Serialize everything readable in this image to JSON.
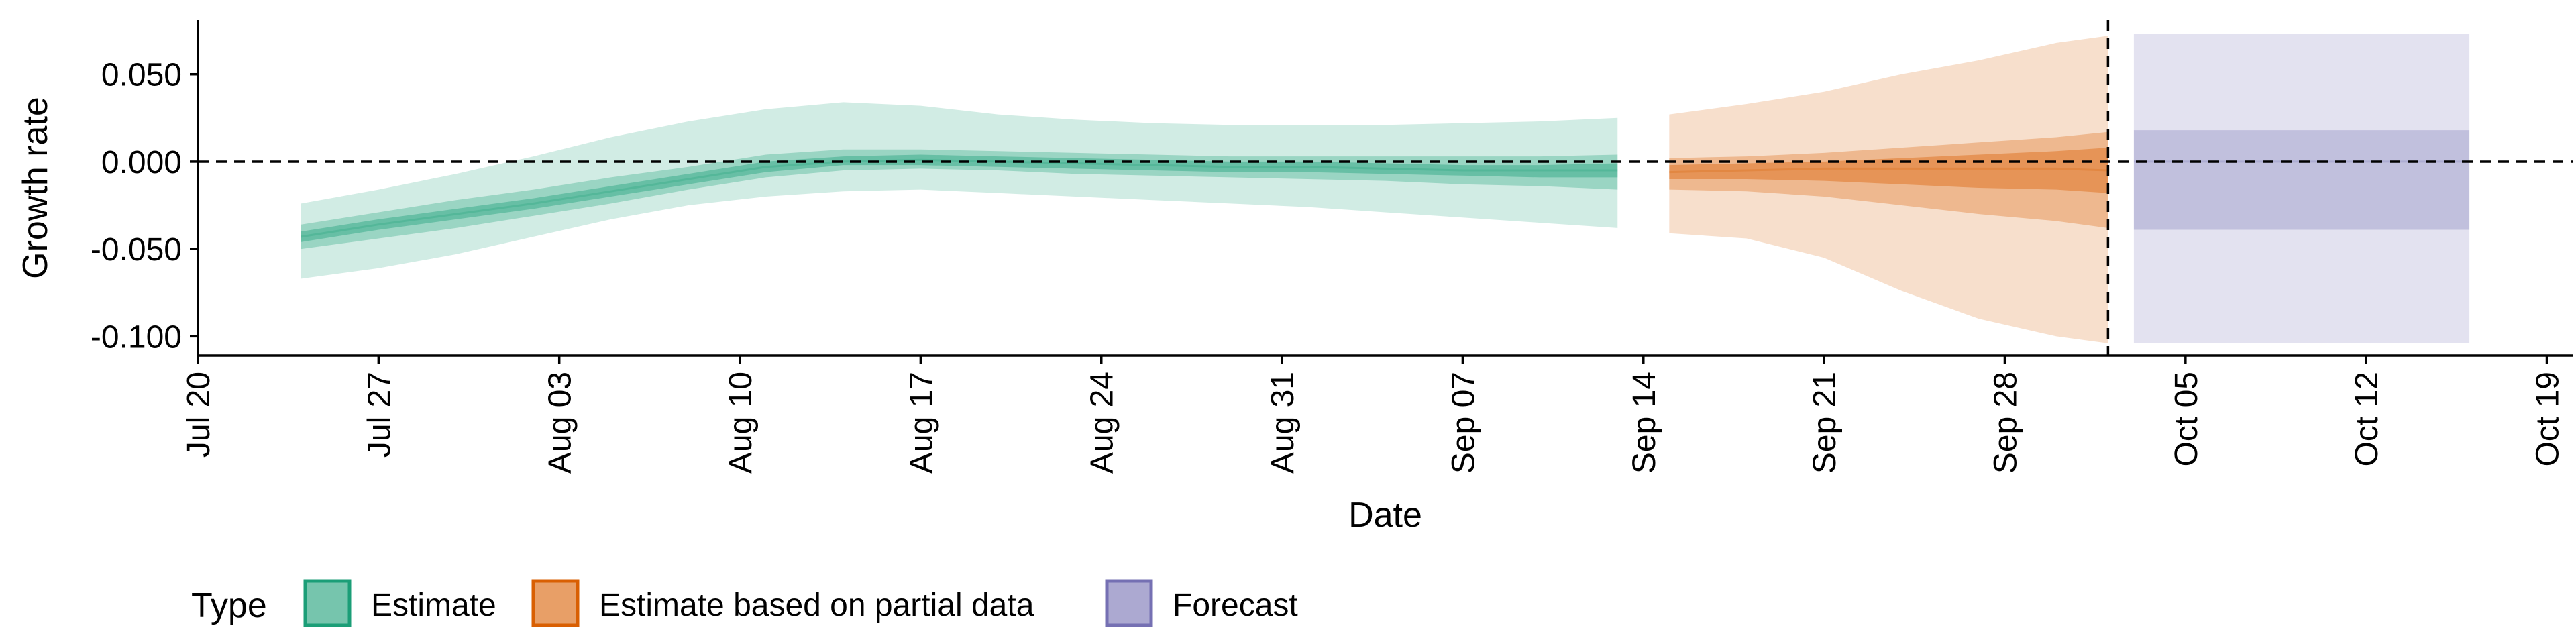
{
  "chart_data": {
    "type": "area",
    "xlabel": "Date",
    "ylabel": "Growth rate",
    "x_ticks": [
      "2020-07-20",
      "2020-07-27",
      "2020-08-03",
      "2020-08-10",
      "2020-08-17",
      "2020-08-24",
      "2020-08-31",
      "2020-09-07",
      "2020-09-14",
      "2020-09-21",
      "2020-09-28",
      "2020-10-05",
      "2020-10-12",
      "2020-10-19"
    ],
    "x_tick_labels": [
      "Jul 20",
      "Jul 27",
      "Aug 03",
      "Aug 10",
      "Aug 17",
      "Aug 24",
      "Aug 31",
      "Sep 07",
      "Sep 14",
      "Sep 21",
      "Sep 28",
      "Oct 05",
      "Oct 12",
      "Oct 19"
    ],
    "y_ticks": [
      0.05,
      0.0,
      -0.05,
      -0.1
    ],
    "y_tick_labels": [
      "0.050",
      "0.000",
      "-0.050",
      "-0.100"
    ],
    "xlim": [
      "2020-07-20",
      "2020-10-20"
    ],
    "ylim": [
      -0.111,
      0.081
    ],
    "hline": 0.0,
    "vline": "2020-10-02",
    "legend": {
      "title": "Type",
      "position": "bottom",
      "entries": [
        {
          "label": "Estimate",
          "color": "#1b9e77"
        },
        {
          "label": "Estimate based on partial data",
          "color": "#d95f02"
        },
        {
          "label": "Forecast",
          "color": "#7570b3"
        }
      ]
    },
    "series": [
      {
        "name": "Estimate",
        "color": "#1b9e77",
        "x": [
          "2020-07-24",
          "2020-07-27",
          "2020-07-30",
          "2020-08-02",
          "2020-08-05",
          "2020-08-08",
          "2020-08-11",
          "2020-08-14",
          "2020-08-17",
          "2020-08-20",
          "2020-08-23",
          "2020-08-26",
          "2020-08-29",
          "2020-09-01",
          "2020-09-04",
          "2020-09-07",
          "2020-09-10",
          "2020-09-13"
        ],
        "median": [
          -0.043,
          -0.036,
          -0.03,
          -0.024,
          -0.017,
          -0.01,
          -0.003,
          0.0,
          0.001,
          0.0,
          -0.001,
          -0.002,
          -0.003,
          -0.003,
          -0.004,
          -0.005,
          -0.005,
          -0.005
        ],
        "lower_90": [
          -0.067,
          -0.061,
          -0.053,
          -0.043,
          -0.033,
          -0.025,
          -0.02,
          -0.017,
          -0.016,
          -0.018,
          -0.02,
          -0.022,
          -0.024,
          -0.026,
          -0.029,
          -0.032,
          -0.035,
          -0.038
        ],
        "upper_90": [
          -0.024,
          -0.016,
          -0.007,
          0.003,
          0.014,
          0.023,
          0.03,
          0.034,
          0.032,
          0.027,
          0.024,
          0.022,
          0.021,
          0.021,
          0.021,
          0.022,
          0.023,
          0.025
        ],
        "lower_50": [
          -0.05,
          -0.044,
          -0.038,
          -0.031,
          -0.024,
          -0.016,
          -0.009,
          -0.005,
          -0.004,
          -0.005,
          -0.007,
          -0.008,
          -0.009,
          -0.01,
          -0.011,
          -0.013,
          -0.014,
          -0.016
        ],
        "upper_50": [
          -0.036,
          -0.029,
          -0.022,
          -0.016,
          -0.009,
          -0.003,
          0.004,
          0.007,
          0.007,
          0.006,
          0.005,
          0.004,
          0.003,
          0.003,
          0.003,
          0.003,
          0.003,
          0.004
        ],
        "lower_20": [
          -0.046,
          -0.039,
          -0.033,
          -0.027,
          -0.02,
          -0.013,
          -0.006,
          -0.002,
          -0.002,
          -0.003,
          -0.004,
          -0.005,
          -0.006,
          -0.006,
          -0.007,
          -0.008,
          -0.009,
          -0.009
        ],
        "upper_20": [
          -0.04,
          -0.033,
          -0.027,
          -0.021,
          -0.014,
          -0.007,
          0.0,
          0.003,
          0.004,
          0.003,
          0.002,
          0.001,
          0.0,
          0.0,
          -0.001,
          -0.002,
          -0.002,
          -0.001
        ]
      },
      {
        "name": "Estimate based on partial data",
        "color": "#d95f02",
        "x": [
          "2020-09-15",
          "2020-09-18",
          "2020-09-21",
          "2020-09-24",
          "2020-09-27",
          "2020-09-30",
          "2020-10-02"
        ],
        "median": [
          -0.006,
          -0.005,
          -0.004,
          -0.004,
          -0.004,
          -0.004,
          -0.005
        ],
        "lower_90": [
          -0.041,
          -0.044,
          -0.055,
          -0.074,
          -0.09,
          -0.1,
          -0.104
        ],
        "upper_90": [
          0.027,
          0.033,
          0.04,
          0.05,
          0.058,
          0.068,
          0.072
        ],
        "lower_50": [
          -0.016,
          -0.017,
          -0.02,
          -0.025,
          -0.03,
          -0.034,
          -0.038
        ],
        "upper_50": [
          0.002,
          0.003,
          0.005,
          0.008,
          0.011,
          0.014,
          0.017
        ],
        "lower_20": [
          -0.01,
          -0.01,
          -0.011,
          -0.013,
          -0.015,
          -0.016,
          -0.018
        ],
        "upper_20": [
          -0.002,
          -0.001,
          0.0,
          0.002,
          0.004,
          0.006,
          0.008
        ]
      },
      {
        "name": "Forecast",
        "color": "#7570b3",
        "x": [
          "2020-10-03",
          "2020-10-16"
        ],
        "median": [
          0.0,
          0.0
        ],
        "lower_90": [
          -0.104,
          -0.104
        ],
        "upper_90": [
          0.073,
          0.073
        ],
        "lower_50": [
          -0.039,
          -0.039
        ],
        "upper_50": [
          0.018,
          0.018
        ]
      }
    ]
  }
}
